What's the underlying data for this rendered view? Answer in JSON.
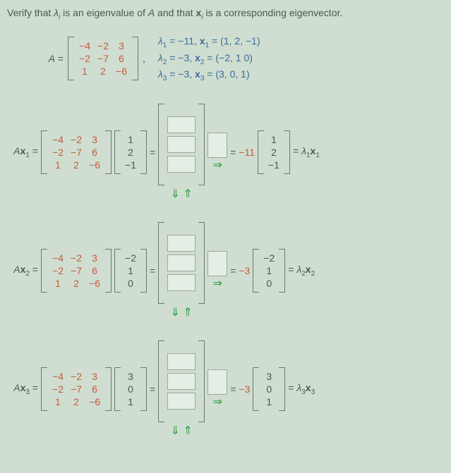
{
  "prompt": {
    "p1": "Verify that ",
    "lam": "λ",
    "sub_i": "i",
    "p2": " is an eigenvalue of ",
    "A": "A",
    "p3": " and that ",
    "x": "x",
    "p4": " is a corresponding eigenvector."
  },
  "matrixA": {
    "label_A": "A",
    "eq": " = ",
    "rows": [
      [
        "−4",
        "−2",
        "3"
      ],
      [
        "−2",
        "−7",
        "6"
      ],
      [
        "1",
        "2",
        "−6"
      ]
    ],
    "comma": ","
  },
  "eigs": {
    "l1_lab": "λ",
    "l1_sub": "1",
    "l1_val": " = −11, ",
    "x1_lab": "x",
    "x1_sub": "1",
    "x1_val": " = (1, 2, −1)",
    "l2_lab": "λ",
    "l2_sub": "2",
    "l2_val": " = −3, ",
    "x2_lab": "x",
    "x2_sub": "2",
    "x2_val": " = (−2, 1 0)",
    "l3_lab": "λ",
    "l3_sub": "3",
    "l3_val": " = −3, ",
    "x3_lab": "x",
    "x3_sub": "3",
    "x3_val": " = (3, 0, 1)"
  },
  "eqs": [
    {
      "lhs_A": "A",
      "lhs_x": "x",
      "lhs_sub": "1",
      "eq": " = ",
      "mat": [
        [
          "−4",
          "−2",
          "3"
        ],
        [
          "−2",
          "−7",
          "6"
        ],
        [
          "1",
          "2",
          "−6"
        ]
      ],
      "vec": [
        "1",
        "2",
        "−1"
      ],
      "scalar": "−11",
      "outvec": [
        "1",
        "2",
        "−1"
      ],
      "rhs_l": "λ",
      "rhs_lsub": "1",
      "rhs_x": "x",
      "rhs_xsub": "1"
    },
    {
      "lhs_A": "A",
      "lhs_x": "x",
      "lhs_sub": "2",
      "eq": " = ",
      "mat": [
        [
          "−4",
          "−2",
          "3"
        ],
        [
          "−2",
          "−7",
          "6"
        ],
        [
          "1",
          "2",
          "−6"
        ]
      ],
      "vec": [
        "−2",
        "1",
        "0"
      ],
      "scalar": "−3",
      "outvec": [
        "−2",
        "1",
        "0"
      ],
      "rhs_l": "λ",
      "rhs_lsub": "2",
      "rhs_x": "x",
      "rhs_xsub": "2"
    },
    {
      "lhs_A": "A",
      "lhs_x": "x",
      "lhs_sub": "3",
      "eq": " = ",
      "mat": [
        [
          "−4",
          "−2",
          "3"
        ],
        [
          "−2",
          "−7",
          "6"
        ],
        [
          "1",
          "2",
          "−6"
        ]
      ],
      "vec": [
        "3",
        "0",
        "1"
      ],
      "scalar": "−3",
      "outvec": [
        "3",
        "0",
        "1"
      ],
      "rhs_l": "λ",
      "rhs_lsub": "3",
      "rhs_x": "x",
      "rhs_xsub": "3"
    }
  ],
  "symbols": {
    "eq": "=",
    "down_up": "⇓ ⇑",
    "right_arrow": "⇒"
  },
  "style": {
    "bg": "#cfded1",
    "text": "#4a5a4a",
    "orange": "#c85a3a",
    "blue": "#3a6a9a",
    "green": "#2a9a3a"
  }
}
